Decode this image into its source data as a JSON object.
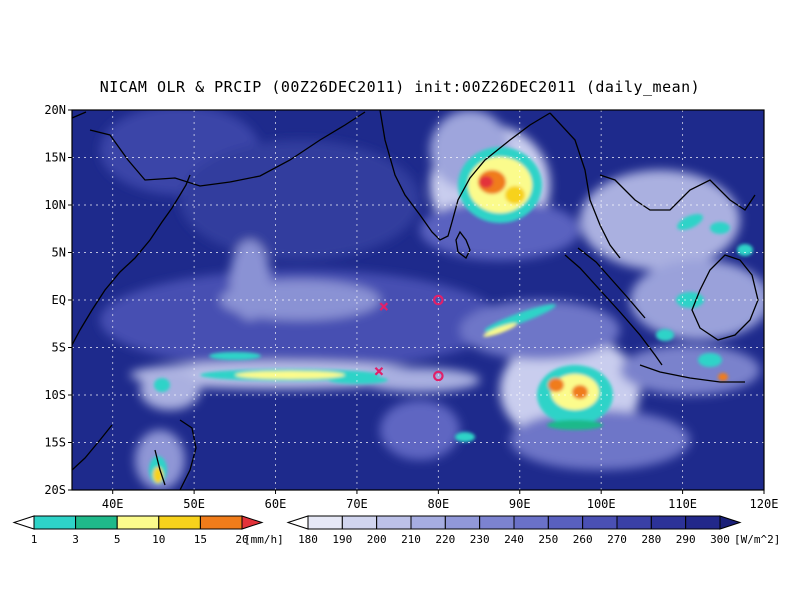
{
  "title": "NICAM OLR & PRCIP (00Z26DEC2011) init:00Z26DEC2011 (daily_mean)",
  "map": {
    "lon_range": [
      35,
      120
    ],
    "lat_range": [
      -20,
      20
    ],
    "lon_ticks": [
      "40E",
      "50E",
      "60E",
      "70E",
      "80E",
      "90E",
      "100E",
      "110E",
      "120E"
    ],
    "lat_ticks": [
      "20N",
      "15N",
      "10N",
      "5N",
      "EQ",
      "5S",
      "10S",
      "15S",
      "20S"
    ],
    "background_color": "#1e2a8c",
    "markers": [
      {
        "type": "cross",
        "lon": 73.3,
        "lat": -0.7,
        "color": "#e0206a"
      },
      {
        "type": "cross",
        "lon": 72.7,
        "lat": -7.5,
        "color": "#e0206a"
      },
      {
        "type": "circle",
        "lon": 80.0,
        "lat": 0.0,
        "color": "#e0206a"
      },
      {
        "type": "circle",
        "lon": 80.0,
        "lat": -8.0,
        "color": "#e0206a"
      }
    ]
  },
  "colorbar_precip": {
    "labels": [
      "1",
      "3",
      "5",
      "10",
      "15",
      "20"
    ],
    "unit": "[mm/h]",
    "colors": [
      "#ffffff",
      "#2ed3c8",
      "#1fb98a",
      "#fbfb8c",
      "#f7d21c",
      "#f07c1a",
      "#e3323a"
    ]
  },
  "colorbar_olr": {
    "labels": [
      "180",
      "190",
      "200",
      "210",
      "220",
      "230",
      "240",
      "250",
      "260",
      "270",
      "280",
      "290",
      "300"
    ],
    "unit": "[W/m^2]",
    "colors": [
      "#ffffff",
      "#e6e8f6",
      "#d1d5ef",
      "#bcc1e8",
      "#a6ade1",
      "#9198d9",
      "#7c83d0",
      "#6a71c8",
      "#5960bf",
      "#4a50b4",
      "#3a40a6",
      "#2c3298",
      "#22288a",
      "#1a1f78"
    ]
  }
}
